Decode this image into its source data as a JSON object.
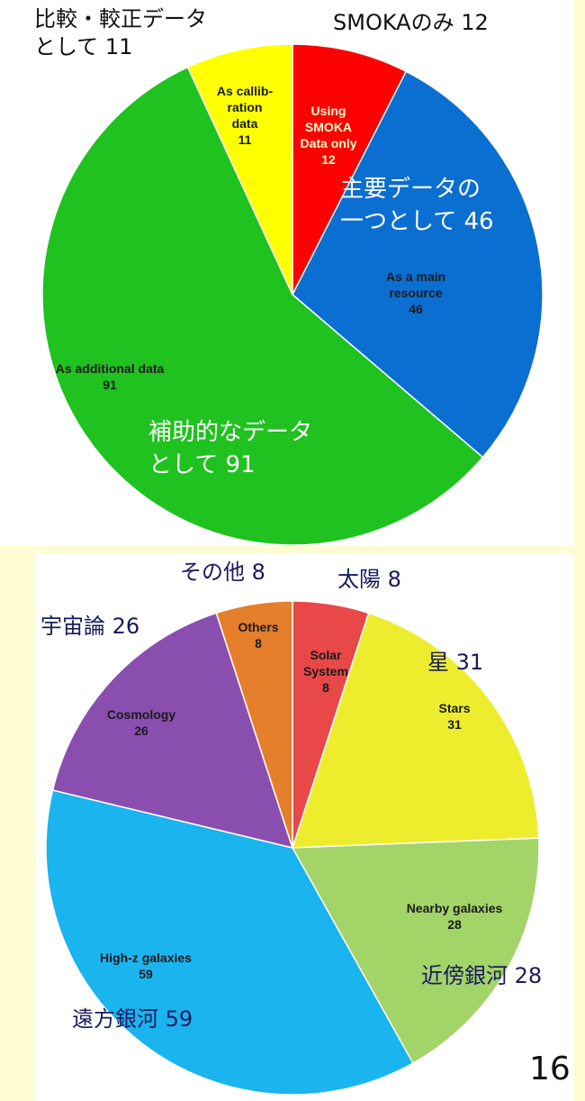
{
  "chart_data": [
    {
      "type": "pie",
      "categories": [
        "Using\nSMOKA\nData only",
        "As a main\nresource",
        "As additional data",
        "As callib-\nration\ndata"
      ],
      "values": [
        12,
        46,
        91,
        11
      ],
      "colors": [
        "#ff0000",
        "#0a6fd0",
        "#1fc21f",
        "#ffff00"
      ],
      "annotations": [
        "SMOKAのみ 12",
        "主要データの\n一つとして 46",
        "補助的なデータ\nとして 91",
        "比較・較正データ\nとして 11"
      ]
    },
    {
      "type": "pie",
      "categories": [
        "Solar\nSystem",
        "Stars",
        "Nearby galaxies",
        "High-z galaxies",
        "Cosmology",
        "Others"
      ],
      "values": [
        8,
        31,
        28,
        59,
        26,
        8
      ],
      "colors": [
        "#e84848",
        "#eded2e",
        "#a2d468",
        "#1ab4ef",
        "#8a4fae",
        "#e57f2c"
      ],
      "annotations": [
        "太陽 8",
        "星 31",
        "近傍銀河 28",
        "遠方銀河 59",
        "宇宙論 26",
        "その他 8"
      ]
    }
  ],
  "page_number": "16"
}
